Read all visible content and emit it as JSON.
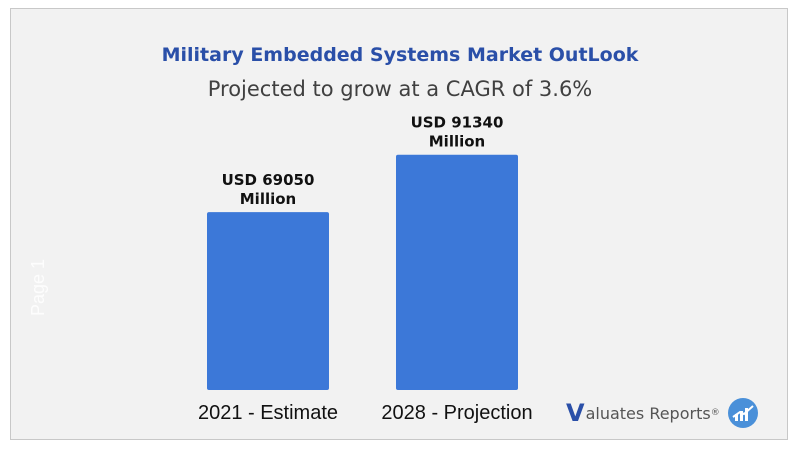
{
  "chart_data": {
    "type": "bar",
    "title": "Military Embedded Systems Market OutLook",
    "subtitle": "Projected to grow at a CAGR of 3.6%",
    "categories": [
      "2021 - Estimate",
      "2028  - Projection"
    ],
    "values": [
      69050,
      91340
    ],
    "value_labels": [
      [
        "USD 69050",
        "Million"
      ],
      [
        "USD 91340",
        "Million"
      ]
    ],
    "ylim": [
      0,
      99000
    ],
    "grid": false,
    "bar_color": "#3c78d8"
  },
  "watermark": "Page 1",
  "brand": {
    "initial": "V",
    "name": "aluates Reports",
    "registered": "®",
    "icon": "chart-growth-icon",
    "color": "#2a4fa8"
  }
}
